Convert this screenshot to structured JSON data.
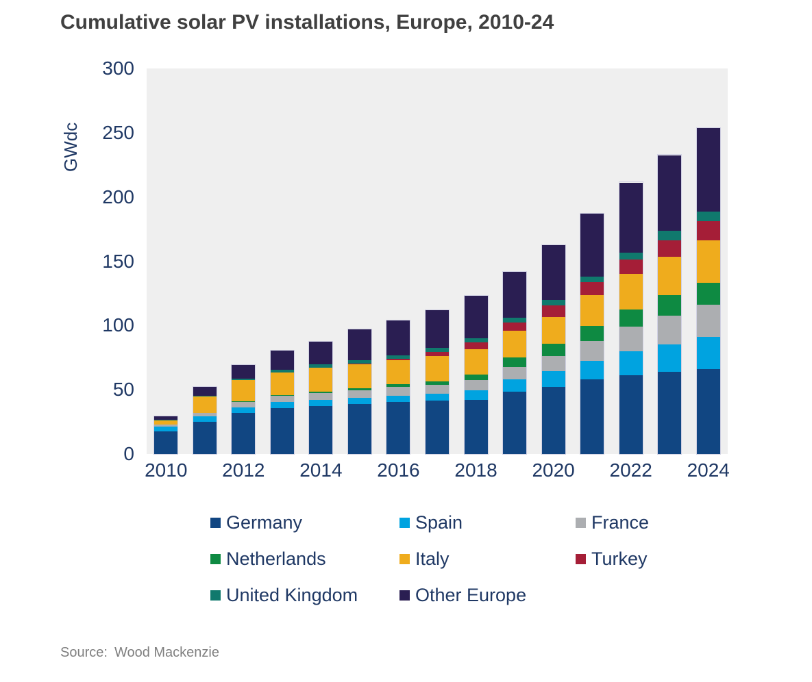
{
  "title": "Cumulative solar PV installations, Europe, 2010-24",
  "source": {
    "prefix": "Source:",
    "text": "Wood Mackenzie"
  },
  "colors": {
    "germany": "#114682",
    "spain": "#00A3E0",
    "france": "#ACAEB1",
    "netherlands": "#0E8A42",
    "italy": "#EFAC1D",
    "turkey": "#A51E37",
    "united_kingdom": "#10796D",
    "other_europe": "#2A1E52",
    "title_text": "#404040",
    "axis_text": "#1F3864",
    "plot_background": "#EFEFEF",
    "source_text": "#7F7F7F"
  },
  "y_axis": {
    "label": "GWdc",
    "ticks": [
      0,
      50,
      100,
      150,
      200,
      250,
      300
    ],
    "max": 300
  },
  "x_axis": {
    "tick_labels": [
      "2010",
      "2012",
      "2014",
      "2016",
      "2018",
      "2020",
      "2022",
      "2024"
    ]
  },
  "chart_data": {
    "type": "bar",
    "stacked": true,
    "unit": "GWdc",
    "title": "Cumulative solar PV installations, Europe, 2010-24",
    "xlabel": "",
    "ylabel": "GWdc",
    "ylim": [
      0,
      300
    ],
    "grid": false,
    "legend_position": "bottom",
    "categories": [
      2010,
      2011,
      2012,
      2013,
      2014,
      2015,
      2016,
      2017,
      2018,
      2019,
      2020,
      2021,
      2022,
      2023,
      2024
    ],
    "series": [
      {
        "name": "Germany",
        "color_key": "germany",
        "values": [
          17.5,
          25.0,
          32.0,
          35.7,
          37.3,
          38.7,
          40.5,
          41.4,
          42.3,
          48.5,
          52.2,
          58.1,
          61.1,
          63.8,
          66.0
        ]
      },
      {
        "name": "Spain",
        "color_key": "spain",
        "values": [
          3.9,
          4.3,
          4.5,
          4.7,
          4.7,
          4.9,
          5.0,
          5.4,
          7.2,
          9.6,
          12.2,
          14.3,
          18.8,
          21.5,
          25.0
        ]
      },
      {
        "name": "France",
        "color_key": "france",
        "values": [
          1.3,
          2.6,
          4.0,
          4.9,
          5.7,
          6.2,
          6.5,
          7.0,
          7.8,
          9.8,
          11.9,
          15.6,
          19.0,
          22.4,
          25.0
        ]
      },
      {
        "name": "Netherlands",
        "color_key": "netherlands",
        "values": [
          0.1,
          0.1,
          0.3,
          0.5,
          1.0,
          1.6,
          2.1,
          2.9,
          4.5,
          7.0,
          9.3,
          11.6,
          13.8,
          16.0,
          17.4
        ]
      },
      {
        "name": "Italy",
        "color_key": "italy",
        "values": [
          3.5,
          12.9,
          16.5,
          17.6,
          18.5,
          18.6,
          18.9,
          19.4,
          19.9,
          20.8,
          20.9,
          24.2,
          27.3,
          29.7,
          32.9
        ]
      },
      {
        "name": "Turkey",
        "color_key": "turkey",
        "values": [
          0.0,
          0.0,
          0.1,
          0.1,
          0.1,
          0.3,
          0.9,
          3.4,
          5.1,
          6.6,
          9.3,
          9.9,
          11.6,
          13.1,
          14.9
        ]
      },
      {
        "name": "United Kingdom",
        "color_key": "united_kingdom",
        "values": [
          0.1,
          0.2,
          1.0,
          2.0,
          2.3,
          2.7,
          2.9,
          3.1,
          3.3,
          3.6,
          4.1,
          4.3,
          4.9,
          7.0,
          7.7
        ]
      },
      {
        "name": "Other Europe",
        "color_key": "other_europe",
        "values": [
          2.8,
          7.1,
          11.1,
          15.0,
          18.0,
          23.9,
          27.0,
          29.4,
          32.9,
          35.9,
          42.5,
          48.9,
          54.8,
          59.1,
          64.7
        ]
      }
    ],
    "totals": [
      29.2,
      52.2,
      69.5,
      80.5,
      87.6,
      96.9,
      103.8,
      112.0,
      123.0,
      141.8,
      162.4,
      186.9,
      211.3,
      232.6,
      253.6
    ]
  }
}
